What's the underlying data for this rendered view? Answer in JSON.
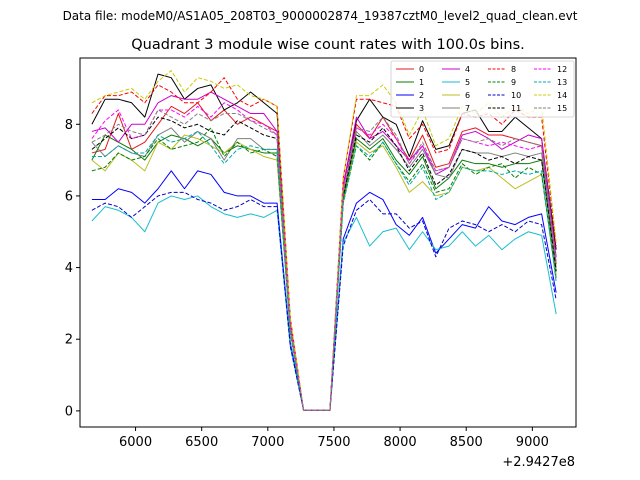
{
  "file_caption": "Data file: modeM0/AS1A05_208T03_9000002874_19387cztM0_level2_quad_clean.evt",
  "chart_data": {
    "type": "line",
    "title": "Quadrant 3 module wise count rates with 100.0s bins.",
    "xlabel": "",
    "ylabel": "",
    "x_offset_label": "+2.9427e8",
    "xlim": [
      5580,
      9330
    ],
    "ylim": [
      -0.45,
      9.85
    ],
    "x_ticks": [
      6000,
      6500,
      7000,
      7500,
      8000,
      8500,
      9000
    ],
    "x_tick_labels": [
      "6000",
      "6500",
      "7000",
      "7500",
      "8000",
      "8500",
      "9000"
    ],
    "y_ticks": [
      0,
      2,
      4,
      6,
      8
    ],
    "y_tick_labels": [
      "0",
      "2",
      "4",
      "6",
      "8"
    ],
    "legend_placement": "top-right",
    "x": [
      5670,
      5770,
      5870,
      5970,
      6070,
      6170,
      6270,
      6370,
      6470,
      6570,
      6670,
      6770,
      6870,
      6970,
      7070,
      7170,
      7270,
      7370,
      7470,
      7570,
      7670,
      7770,
      7870,
      7970,
      8070,
      8170,
      8270,
      8370,
      8470,
      8570,
      8670,
      8770,
      8870,
      8970,
      9070,
      9180
    ],
    "series": [
      {
        "name": "0",
        "color": "#e41a1c",
        "dashed": false,
        "values": [
          7.2,
          7.3,
          8.3,
          7.3,
          7.5,
          8.0,
          8.5,
          8.3,
          8.6,
          8.1,
          8.4,
          8.0,
          8.2,
          8.0,
          7.8,
          2.4,
          0.02,
          0.02,
          0.02,
          6.0,
          8.0,
          7.6,
          8.2,
          7.6,
          7.0,
          7.7,
          6.8,
          6.9,
          7.8,
          7.9,
          7.7,
          7.7,
          7.6,
          7.5,
          7.4,
          4.1
        ]
      },
      {
        "name": "1",
        "color": "#0a7a0a",
        "dashed": false,
        "values": [
          7.0,
          7.7,
          7.5,
          7.3,
          7.0,
          7.5,
          7.7,
          7.6,
          7.4,
          7.6,
          7.2,
          7.4,
          7.3,
          7.2,
          7.2,
          2.2,
          0.02,
          0.02,
          0.02,
          5.9,
          7.6,
          7.3,
          7.6,
          7.0,
          6.6,
          7.1,
          6.2,
          6.5,
          7.0,
          6.9,
          6.9,
          6.8,
          6.9,
          6.9,
          7.0,
          3.9
        ]
      },
      {
        "name": "2",
        "color": "#0000ff",
        "dashed": false,
        "values": [
          5.9,
          5.9,
          6.2,
          6.1,
          5.8,
          6.2,
          6.7,
          6.2,
          6.7,
          6.6,
          6.1,
          6.0,
          6.0,
          5.8,
          5.8,
          1.9,
          0.02,
          0.02,
          0.02,
          4.8,
          5.8,
          6.1,
          5.9,
          5.2,
          4.9,
          5.4,
          4.4,
          4.8,
          5.2,
          5.1,
          5.7,
          5.3,
          5.2,
          5.4,
          5.5,
          3.3
        ]
      },
      {
        "name": "3",
        "color": "#000000",
        "dashed": false,
        "values": [
          8.0,
          8.7,
          8.7,
          8.6,
          8.2,
          9.4,
          9.3,
          8.7,
          9.0,
          9.1,
          8.4,
          8.6,
          8.9,
          8.6,
          8.3,
          2.5,
          0.02,
          0.02,
          0.02,
          6.3,
          8.1,
          8.7,
          8.2,
          8.0,
          7.1,
          8.1,
          7.3,
          7.4,
          8.3,
          8.4,
          7.8,
          7.8,
          8.2,
          7.9,
          7.6,
          4.5
        ]
      },
      {
        "name": "4",
        "color": "#cc00cc",
        "dashed": false,
        "values": [
          7.8,
          7.9,
          7.5,
          8.0,
          8.0,
          8.6,
          8.8,
          8.7,
          8.7,
          8.9,
          8.7,
          8.5,
          8.3,
          8.3,
          7.8,
          2.4,
          0.02,
          0.02,
          0.02,
          6.3,
          8.2,
          7.6,
          7.8,
          7.4,
          7.0,
          7.4,
          6.6,
          6.8,
          7.7,
          7.8,
          7.6,
          7.3,
          7.5,
          7.7,
          7.6,
          4.3
        ]
      },
      {
        "name": "5",
        "color": "#17becf",
        "dashed": false,
        "values": [
          5.3,
          5.7,
          5.6,
          5.4,
          5.0,
          5.8,
          6.0,
          5.9,
          6.0,
          5.7,
          5.5,
          5.4,
          5.5,
          5.4,
          5.6,
          1.8,
          0.02,
          0.02,
          0.02,
          4.7,
          5.4,
          4.6,
          5.0,
          5.1,
          4.5,
          5.0,
          4.5,
          4.6,
          5.0,
          4.6,
          4.9,
          4.5,
          4.8,
          5.0,
          4.9,
          2.7
        ]
      },
      {
        "name": "6",
        "color": "#bcbd22",
        "dashed": false,
        "values": [
          7.0,
          6.7,
          7.2,
          7.0,
          6.7,
          7.5,
          7.3,
          7.7,
          7.6,
          7.4,
          7.2,
          7.5,
          7.3,
          7.1,
          7.0,
          2.2,
          0.02,
          0.02,
          0.02,
          5.8,
          7.5,
          7.2,
          7.4,
          6.8,
          6.1,
          6.4,
          6.0,
          6.1,
          6.8,
          6.7,
          6.8,
          6.5,
          6.2,
          6.4,
          6.6,
          3.8
        ]
      },
      {
        "name": "7",
        "color": "#7f7f7f",
        "dashed": false,
        "values": [
          7.5,
          7.1,
          7.4,
          7.2,
          7.1,
          7.7,
          7.9,
          7.5,
          7.8,
          7.6,
          7.0,
          7.6,
          7.6,
          7.3,
          7.3,
          2.3,
          0.02,
          0.02,
          0.02,
          6.0,
          7.8,
          7.4,
          7.7,
          7.3,
          6.8,
          7.3,
          6.6,
          6.5,
          7.3,
          7.2,
          7.2,
          7.1,
          7.2,
          7.1,
          7.2,
          4.0
        ]
      },
      {
        "name": "8",
        "color": "#ff0000",
        "dashed": true,
        "values": [
          8.3,
          8.8,
          8.8,
          8.9,
          8.6,
          9.1,
          8.9,
          8.6,
          8.6,
          8.9,
          9.3,
          8.7,
          8.5,
          8.7,
          8.5,
          2.6,
          0.02,
          0.02,
          0.02,
          6.5,
          8.7,
          8.7,
          8.6,
          8.5,
          7.6,
          8.0,
          7.2,
          7.3,
          8.3,
          8.2,
          8.3,
          8.0,
          8.4,
          8.2,
          8.2,
          4.6
        ]
      },
      {
        "name": "9",
        "color": "#008000",
        "dashed": true,
        "values": [
          6.7,
          6.8,
          7.2,
          7.0,
          7.1,
          7.6,
          7.3,
          7.4,
          7.5,
          7.9,
          7.1,
          7.5,
          7.2,
          7.3,
          7.1,
          2.2,
          0.02,
          0.02,
          0.02,
          5.8,
          7.4,
          7.0,
          7.5,
          6.9,
          6.4,
          6.9,
          6.1,
          6.2,
          6.9,
          6.6,
          6.8,
          6.9,
          6.5,
          6.8,
          6.6,
          3.7
        ]
      },
      {
        "name": "10",
        "color": "#0000cc",
        "dashed": true,
        "values": [
          5.6,
          5.8,
          5.7,
          5.4,
          5.7,
          6.0,
          6.1,
          6.1,
          5.9,
          5.8,
          5.6,
          5.7,
          5.9,
          5.7,
          5.7,
          1.8,
          0.02,
          0.02,
          0.02,
          4.6,
          5.6,
          5.9,
          5.5,
          5.5,
          5.1,
          5.3,
          4.3,
          5.1,
          5.3,
          5.2,
          5.0,
          5.2,
          5.0,
          5.3,
          5.2,
          3.1
        ]
      },
      {
        "name": "11",
        "color": "#000000",
        "dashed": true,
        "values": [
          7.3,
          7.6,
          7.9,
          7.6,
          7.7,
          8.2,
          8.1,
          7.9,
          8.0,
          7.8,
          7.7,
          8.1,
          7.9,
          7.7,
          7.6,
          2.3,
          0.02,
          0.02,
          0.02,
          6.0,
          7.7,
          7.5,
          7.9,
          7.4,
          6.7,
          7.2,
          6.3,
          6.6,
          7.3,
          7.2,
          7.0,
          7.1,
          6.9,
          7.1,
          7.0,
          3.9
        ]
      },
      {
        "name": "12",
        "color": "#ff00ff",
        "dashed": true,
        "values": [
          7.6,
          8.1,
          8.4,
          7.6,
          7.7,
          8.4,
          8.4,
          8.2,
          8.5,
          8.2,
          8.6,
          8.4,
          8.1,
          8.0,
          7.7,
          2.4,
          0.02,
          0.02,
          0.02,
          6.2,
          7.9,
          7.7,
          8.0,
          7.6,
          6.9,
          7.4,
          6.7,
          6.8,
          7.6,
          7.5,
          7.4,
          7.5,
          7.4,
          7.3,
          7.4,
          4.2
        ]
      },
      {
        "name": "13",
        "color": "#00aaaa",
        "dashed": true,
        "values": [
          7.1,
          7.1,
          7.4,
          7.2,
          7.2,
          7.7,
          7.5,
          7.6,
          7.8,
          7.4,
          6.9,
          7.3,
          7.4,
          7.3,
          7.3,
          2.2,
          0.02,
          0.02,
          0.02,
          5.8,
          7.4,
          7.1,
          7.5,
          6.9,
          6.3,
          6.8,
          5.9,
          6.1,
          6.8,
          6.7,
          6.7,
          6.6,
          6.7,
          6.6,
          6.7,
          3.6
        ]
      },
      {
        "name": "14",
        "color": "#cccc00",
        "dashed": true,
        "values": [
          8.6,
          8.8,
          8.9,
          9.0,
          8.7,
          9.2,
          9.5,
          8.9,
          9.3,
          9.2,
          9.0,
          9.1,
          8.8,
          8.7,
          8.5,
          2.6,
          0.02,
          0.02,
          0.02,
          6.5,
          8.8,
          8.8,
          9.1,
          8.6,
          7.7,
          8.4,
          7.4,
          7.6,
          8.5,
          8.3,
          8.6,
          8.2,
          8.5,
          8.3,
          8.5,
          4.7
        ]
      },
      {
        "name": "15",
        "color": "#808080",
        "dashed": true,
        "values": [
          7.5,
          7.7,
          8.0,
          7.8,
          7.7,
          8.4,
          8.2,
          8.0,
          8.3,
          8.1,
          8.3,
          8.3,
          8.1,
          7.9,
          7.7,
          2.3,
          0.02,
          0.02,
          0.02,
          6.1,
          7.9,
          7.8,
          8.2,
          7.7,
          6.9,
          7.5,
          6.7,
          6.8,
          7.6,
          7.5,
          7.6,
          7.4,
          7.6,
          7.5,
          7.4,
          4.2
        ]
      }
    ]
  }
}
